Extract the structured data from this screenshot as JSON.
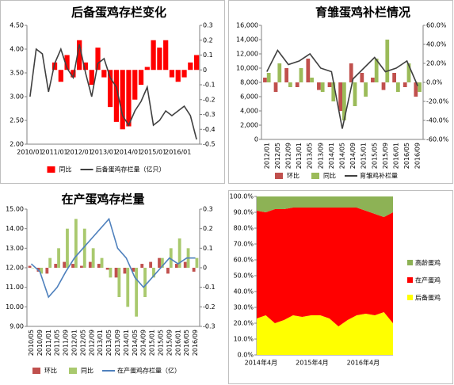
{
  "chart_data": [
    {
      "type": "bar_line",
      "title": "后备蛋鸡存栏变化",
      "categories": [
        "2010/01",
        null,
        null,
        null,
        "2011/01",
        null,
        null,
        null,
        "2012/01",
        null,
        null,
        null,
        "2013/01",
        null,
        null,
        null,
        "2014/01",
        null,
        null,
        null,
        "2015/01",
        null,
        null,
        null,
        "2016/01",
        null,
        null,
        null
      ],
      "series": [
        {
          "name": "同比",
          "type": "bar",
          "axis": "y2",
          "color": "#ff0000",
          "values": [
            null,
            null,
            null,
            null,
            0.05,
            -0.08,
            0.1,
            -0.05,
            0.2,
            0.05,
            -0.1,
            0.15,
            -0.05,
            -0.25,
            -0.35,
            -0.4,
            -0.38,
            -0.2,
            -0.1,
            0.02,
            0.2,
            0.15,
            0.2,
            -0.05,
            -0.08,
            -0.05,
            0.05,
            0.1
          ]
        },
        {
          "name": "后备蛋鸡存栏量（亿只）",
          "type": "line",
          "color": "#404040",
          "values": [
            3.0,
            4.0,
            3.9,
            3.1,
            3.7,
            4.0,
            3.6,
            3.4,
            4.1,
            3.5,
            3.0,
            3.7,
            3.8,
            3.4,
            3.2,
            2.6,
            2.4,
            2.7,
            2.9,
            3.2,
            2.4,
            2.5,
            2.7,
            2.6,
            2.7,
            2.8,
            2.6,
            2.1
          ]
        }
      ],
      "ylim": [
        2,
        4.5
      ],
      "yticks": [
        {
          "value": 2,
          "label": "2.00"
        },
        {
          "value": 2.5,
          "label": "2.50"
        },
        {
          "value": 3,
          "label": "3.00"
        },
        {
          "value": 3.5,
          "label": "3.50"
        },
        {
          "value": 4,
          "label": "4.00"
        },
        {
          "value": 4.5,
          "label": "4.50"
        }
      ],
      "y2lim": [
        -0.5,
        0.3
      ],
      "y2ticks": [
        -0.5,
        -0.4,
        -0.3,
        -0.2,
        -0.1,
        0,
        0.1,
        0.2,
        0.3
      ],
      "legend": "bottom"
    },
    {
      "type": "bar_line",
      "title": "育雏蛋鸡补栏情况",
      "categories": [
        "2012/01",
        "2012/05",
        "2012/09",
        "2013/01",
        "2013/05",
        "2013/09",
        "2014/01",
        "2014/05",
        "2014/09",
        "2015/01",
        "2015/05",
        "2015/09",
        "2016/01",
        "2016/05",
        "2016/09"
      ],
      "series": [
        {
          "name": "环比",
          "type": "bar",
          "axis": "y2",
          "color": "#c0504d",
          "values": [
            5,
            -10,
            15,
            -5,
            25,
            -8,
            -5,
            -30,
            20,
            10,
            5,
            -8,
            10,
            -5,
            -15
          ]
        },
        {
          "name": "同比",
          "type": "bar",
          "axis": "y2",
          "color": "#9bbb59",
          "values": [
            10,
            20,
            -5,
            15,
            5,
            -10,
            -20,
            -40,
            -25,
            -15,
            25,
            45,
            -10,
            20,
            -10
          ]
        },
        {
          "name": "育雏鸡补栏量",
          "type": "line",
          "color": "#404040",
          "values": [
            9500,
            12500,
            10500,
            11000,
            12000,
            10000,
            9500,
            1500,
            8500,
            10000,
            11500,
            9500,
            10000,
            11000,
            7500
          ]
        }
      ],
      "ylim": [
        0,
        16000
      ],
      "yticks": [
        0,
        {
          "value": 2000,
          "label": "2,000"
        },
        {
          "value": 4000,
          "label": "4,000"
        },
        {
          "value": 6000,
          "label": "6,000"
        },
        {
          "value": 8000,
          "label": "8,000"
        },
        {
          "value": 10000,
          "label": "10,000"
        },
        {
          "value": 12000,
          "label": "12,000"
        },
        {
          "value": 14000,
          "label": "14,000"
        },
        {
          "value": 16000,
          "label": "16,000"
        }
      ],
      "y2lim": [
        -60,
        60
      ],
      "y2ticks": [
        {
          "value": -60,
          "label": "-60.0%"
        },
        {
          "value": -40,
          "label": "-40.0%"
        },
        {
          "value": -20,
          "label": "-20.0%"
        },
        {
          "value": 0,
          "label": "0.0%"
        },
        {
          "value": 20,
          "label": "20.0%"
        },
        {
          "value": 40,
          "label": "40.0%"
        },
        {
          "value": 60,
          "label": "60.0%"
        }
      ],
      "legend": "bottom"
    },
    {
      "type": "bar_line",
      "title": "在产蛋鸡存栏量",
      "categories": [
        "2010/05",
        "2010/09",
        "2011/01",
        "2011/05",
        "2011/09",
        "2012/01",
        "2012/05",
        "2012/09",
        "2013/01",
        "2013/05",
        "2013/09",
        "2014/01",
        "2014/05",
        "2014/09",
        "2015/01",
        "2015/05",
        "2015/09",
        "2016/01",
        "2016/05",
        "2016/09"
      ],
      "series": [
        {
          "name": "环比",
          "type": "bar",
          "axis": "y2",
          "color": "#c0504d",
          "values": [
            0.01,
            -0.02,
            -0.03,
            0.02,
            0.03,
            0.02,
            0.01,
            0.03,
            0.02,
            -0.01,
            -0.05,
            -0.03,
            -0.02,
            0.02,
            0.03,
            0.05,
            -0.03,
            0.02,
            0.03,
            -0.02
          ]
        },
        {
          "name": "同比",
          "type": "bar",
          "axis": "y2",
          "color": "#a9c96e",
          "values": [
            0,
            -0.03,
            0.05,
            0.1,
            0.2,
            0.25,
            0.2,
            0.1,
            0.05,
            -0.05,
            -0.15,
            -0.2,
            -0.25,
            -0.15,
            -0.05,
            0.05,
            0.1,
            0.15,
            0.1,
            0.05
          ]
        },
        {
          "name": "在产蛋鸡存栏量（亿）",
          "type": "line",
          "color": "#4f81bd",
          "values": [
            12.2,
            11.8,
            10.5,
            11.0,
            11.8,
            12.5,
            13.0,
            13.5,
            14.0,
            14.5,
            13.0,
            12.5,
            11.5,
            11.0,
            11.5,
            12.0,
            12.5,
            12.2,
            12.5,
            12.5
          ]
        }
      ],
      "ylim": [
        9,
        15
      ],
      "yticks": [
        {
          "value": 9,
          "label": "9.00"
        },
        {
          "value": 10,
          "label": "10.00"
        },
        {
          "value": 11,
          "label": "11.00"
        },
        {
          "value": 12,
          "label": "12.00"
        },
        {
          "value": 13,
          "label": "13.00"
        },
        {
          "value": 14,
          "label": "14.00"
        },
        {
          "value": 15,
          "label": "15.00"
        }
      ],
      "y2lim": [
        -0.3,
        0.3
      ],
      "y2ticks": [
        -0.3,
        -0.2,
        -0.1,
        0,
        0.1,
        0.2,
        0.3
      ],
      "legend": "bottom"
    },
    {
      "type": "area",
      "stacked": true,
      "categories": [
        "2014年4月",
        null,
        null,
        null,
        null,
        null,
        "2015年4月",
        null,
        null,
        null,
        null,
        null,
        "2016年4月",
        null,
        null,
        null
      ],
      "series": [
        {
          "name": "后备蛋鸡",
          "color": "#ffff00",
          "values": [
            23,
            25,
            20,
            22,
            25,
            24,
            25,
            25,
            23,
            18,
            22,
            25,
            26,
            25,
            27,
            20
          ]
        },
        {
          "name": "在产蛋鸡",
          "color": "#ff0000",
          "values": [
            68,
            65,
            72,
            70,
            68,
            69,
            68,
            68,
            70,
            75,
            71,
            68,
            65,
            64,
            60,
            70
          ]
        },
        {
          "name": "高龄蛋鸡",
          "color": "#8db255",
          "values": [
            9,
            10,
            8,
            8,
            7,
            7,
            7,
            7,
            7,
            7,
            7,
            7,
            9,
            11,
            13,
            10
          ]
        }
      ],
      "ylim": [
        0,
        100
      ],
      "yticks": [
        {
          "value": 0,
          "label": "0.0%"
        },
        {
          "value": 10,
          "label": "10.0%"
        },
        {
          "value": 20,
          "label": "20.0%"
        },
        {
          "value": 30,
          "label": "30.0%"
        },
        {
          "value": 40,
          "label": "40.0%"
        },
        {
          "value": 50,
          "label": "50.0%"
        },
        {
          "value": 60,
          "label": "60.0%"
        },
        {
          "value": 70,
          "label": "70.0%"
        },
        {
          "value": 80,
          "label": "80.0%"
        },
        {
          "value": 90,
          "label": "90.0%"
        },
        {
          "value": 100,
          "label": "100.0%"
        }
      ],
      "legend": "right"
    }
  ]
}
